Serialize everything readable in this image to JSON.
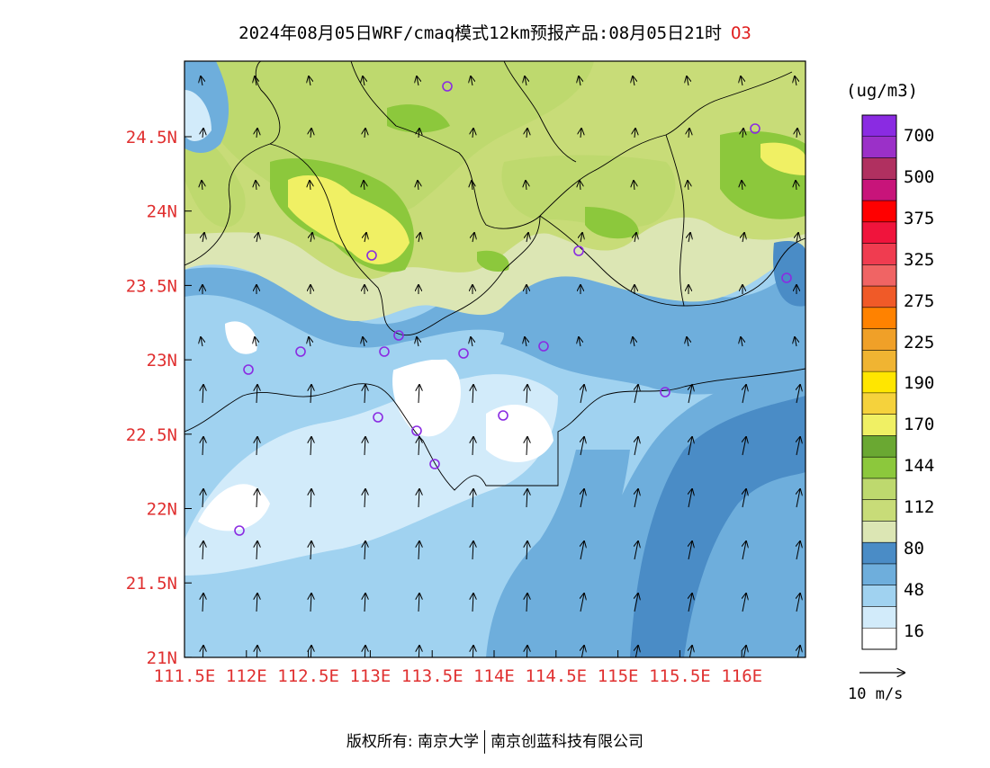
{
  "title": {
    "main": "2024年08月05日WRF/cmaq模式12km预报产品:08月05日21时",
    "species": "O3"
  },
  "y_ticks": [
    "24.5N",
    "24N",
    "23.5N",
    "23N",
    "22.5N",
    "22N",
    "21.5N",
    "21N"
  ],
  "x_ticks": [
    "111.5E",
    "112E",
    "112.5E",
    "113E",
    "113.5E",
    "114E",
    "114.5E",
    "115E",
    "115.5E",
    "116E"
  ],
  "colorbar": {
    "unit": "(ug/m3)",
    "labels": [
      "700",
      "500",
      "375",
      "325",
      "275",
      "225",
      "190",
      "170",
      "144",
      "112",
      "80",
      "48",
      "16"
    ],
    "colors": [
      "#8a2be2",
      "#9b30c8",
      "#b03060",
      "#c8147a",
      "#ff0000",
      "#f0143c",
      "#f03c50",
      "#f06464",
      "#f05a28",
      "#ff8200",
      "#f0a028",
      "#f0b432",
      "#ffe600",
      "#f5d23c",
      "#f0f064",
      "#6aa832",
      "#8cc83c",
      "#bed96e",
      "#c8dc78",
      "#dce6b4",
      "#4a8cc6",
      "#6eaedc",
      "#a0d2f0",
      "#d2ebfa",
      "#ffffff"
    ]
  },
  "vector_legend": {
    "label": "10 m/s"
  },
  "footer": {
    "left": "版权所有: 南京大学",
    "right": "南京创蓝科技有限公司"
  },
  "stations_count_note": ""
}
